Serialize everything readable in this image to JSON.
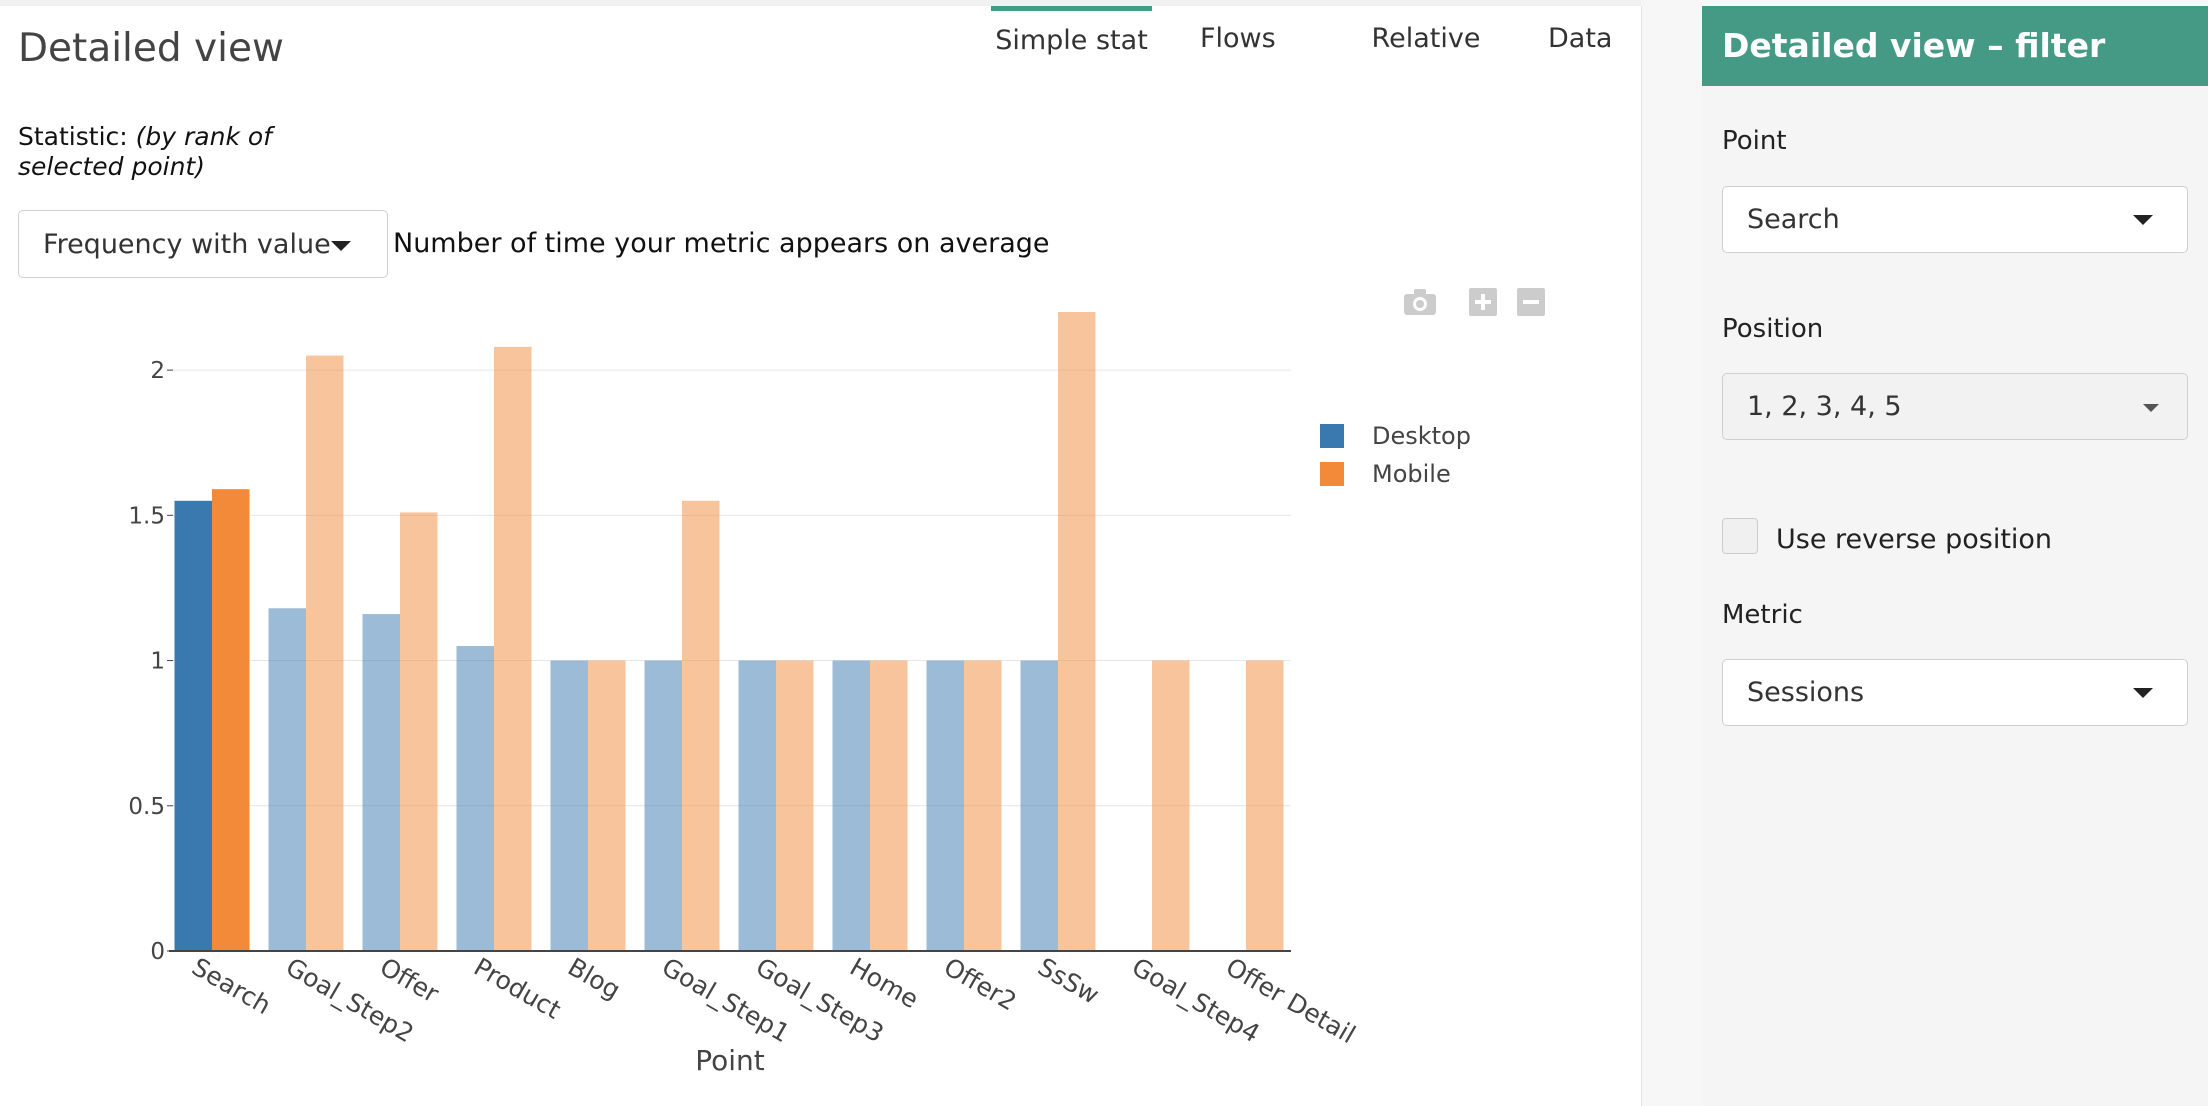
{
  "main": {
    "title": "Detailed view",
    "tabs": [
      {
        "label": "Simple stat",
        "active": true
      },
      {
        "label": "Flows",
        "active": false
      },
      {
        "label": "Relative",
        "active": false
      },
      {
        "label": "Data",
        "active": false
      }
    ],
    "statistic_label": "Statistic:",
    "statistic_hint": "(by rank of selected point)",
    "statistic_select": "Frequency with value",
    "statistic_description": "Number of time your metric appears on average",
    "modebar": {
      "camera_icon": "camera-icon",
      "zoom_in_icon": "plus-icon",
      "zoom_out_icon": "minus-icon",
      "color": "#cccccc"
    }
  },
  "chart_data": {
    "type": "bar",
    "categories": [
      "Search",
      "Goal_Step2",
      "Offer",
      "Product",
      "Blog",
      "Goal_Step1",
      "Goal_Step3",
      "Home",
      "Offer2",
      "SsSw",
      "Goal_Step4",
      "Offer Detail"
    ],
    "series": [
      {
        "name": "Desktop",
        "color": "#3a78b0",
        "values": [
          1.55,
          1.18,
          1.16,
          1.05,
          1,
          1,
          1,
          1,
          1,
          1,
          null,
          null
        ]
      },
      {
        "name": "Mobile",
        "color": "#f28a3a",
        "values": [
          1.59,
          2.05,
          1.51,
          2.08,
          1,
          1.55,
          1,
          1,
          1,
          2.2,
          1,
          1
        ]
      }
    ],
    "highlighted_category": "Search",
    "xlabel": "Point",
    "ylabel": "",
    "ylim": [
      0,
      2.2
    ],
    "yticks": [
      "0",
      "0.5",
      "1",
      "1.5",
      "2"
    ],
    "grid": true,
    "legend_position": "right"
  },
  "sidebar": {
    "title": "Detailed view – filter",
    "point_label": "Point",
    "point_value": "Search",
    "position_label": "Position",
    "position_value": "1, 2, 3, 4, 5",
    "reverse_label": "Use reverse position",
    "reverse_checked": false,
    "metric_label": "Metric",
    "metric_value": "Sessions"
  },
  "colors": {
    "accent": "#459a86",
    "desktop": "#3a78b0",
    "mobile": "#f28a3a"
  }
}
